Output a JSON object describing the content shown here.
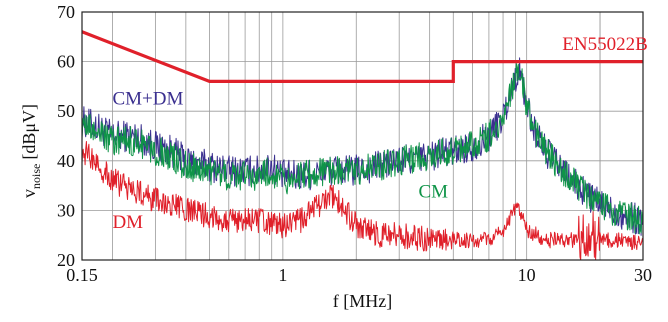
{
  "chart_data": {
    "type": "line",
    "xscale": "log",
    "xlim": [
      0.15,
      30
    ],
    "ylim": [
      20,
      70
    ],
    "x_ticks": [
      0.15,
      1,
      10,
      30
    ],
    "x_tick_labels": [
      "0.15",
      "1",
      "10",
      "30"
    ],
    "y_ticks": [
      20,
      30,
      40,
      50,
      60,
      70
    ],
    "y_tick_labels": [
      "20",
      "30",
      "40",
      "50",
      "60",
      "70"
    ],
    "xlabel": "f [MHz]",
    "ylabel_main": "v",
    "ylabel_sub": "noise",
    "ylabel_unit": "[dBμV]",
    "grid": true,
    "series": [
      {
        "name": "EN55022B",
        "color": "#e0202a",
        "x": [
          0.15,
          0.5,
          5,
          5,
          30
        ],
        "values": [
          66,
          56,
          56,
          60,
          60
        ]
      },
      {
        "name": "CM+DM",
        "color": "#3a2f8f",
        "x": [
          0.15,
          0.17,
          0.2,
          0.25,
          0.3,
          0.35,
          0.4,
          0.5,
          0.6,
          0.7,
          0.8,
          0.9,
          1,
          1.2,
          1.5,
          1.8,
          2,
          2.5,
          3,
          4,
          5,
          6,
          7,
          8,
          8.5,
          9,
          9.3,
          9.6,
          10,
          11,
          12,
          14,
          16,
          18,
          20,
          25,
          30
        ],
        "values": [
          48,
          47,
          45,
          45,
          43,
          42,
          40,
          39,
          38,
          38,
          38,
          39,
          37,
          37,
          38,
          38,
          38,
          39,
          40,
          41,
          42,
          43,
          45,
          49,
          53,
          57,
          58,
          56,
          51,
          45,
          42,
          38,
          35,
          33,
          31,
          29,
          28
        ]
      },
      {
        "name": "CM",
        "color": "#0f9448",
        "x": [
          0.15,
          0.17,
          0.2,
          0.25,
          0.3,
          0.35,
          0.4,
          0.5,
          0.6,
          0.7,
          0.8,
          0.9,
          1,
          1.2,
          1.5,
          1.8,
          2,
          2.5,
          3,
          4,
          5,
          6,
          7,
          8,
          8.5,
          9,
          9.3,
          9.6,
          10,
          11,
          12,
          14,
          16,
          18,
          20,
          25,
          30
        ],
        "values": [
          47,
          46,
          44,
          44,
          42,
          41,
          39,
          38,
          37,
          37,
          37,
          38,
          36,
          37,
          38,
          38,
          38,
          39,
          40,
          41,
          42,
          43,
          45,
          49,
          53,
          57,
          58.5,
          56,
          51,
          45,
          42,
          38,
          35,
          33,
          31,
          29,
          28
        ]
      },
      {
        "name": "DM",
        "color": "#e0202a",
        "x": [
          0.15,
          0.17,
          0.2,
          0.25,
          0.3,
          0.35,
          0.4,
          0.5,
          0.6,
          0.7,
          0.8,
          0.9,
          1,
          1.2,
          1.4,
          1.6,
          1.8,
          2,
          2.5,
          3,
          4,
          5,
          6,
          7,
          8,
          8.7,
          9.2,
          9.6,
          10,
          11,
          12,
          14,
          16,
          18,
          20,
          25,
          30
        ],
        "values": [
          42,
          40,
          36,
          34,
          32,
          31,
          30,
          29,
          28,
          28,
          28,
          27,
          27,
          28,
          31,
          33,
          30,
          27,
          25,
          25,
          24,
          24,
          24,
          24,
          26,
          29,
          31,
          29,
          26,
          25,
          24,
          24,
          24,
          25,
          24,
          24,
          23
        ]
      }
    ],
    "annotations": [
      {
        "text": "EN55022B",
        "x": 14,
        "y": 62.3,
        "color": "#e0202a"
      },
      {
        "text": "CM+DM",
        "x": 0.2,
        "y": 51.4,
        "color": "#3a2f8f"
      },
      {
        "text": "CM",
        "x": 3.6,
        "y": 32.6,
        "color": "#0f9448"
      },
      {
        "text": "DM",
        "x": 0.2,
        "y": 26.5,
        "color": "#e0202a"
      }
    ]
  }
}
